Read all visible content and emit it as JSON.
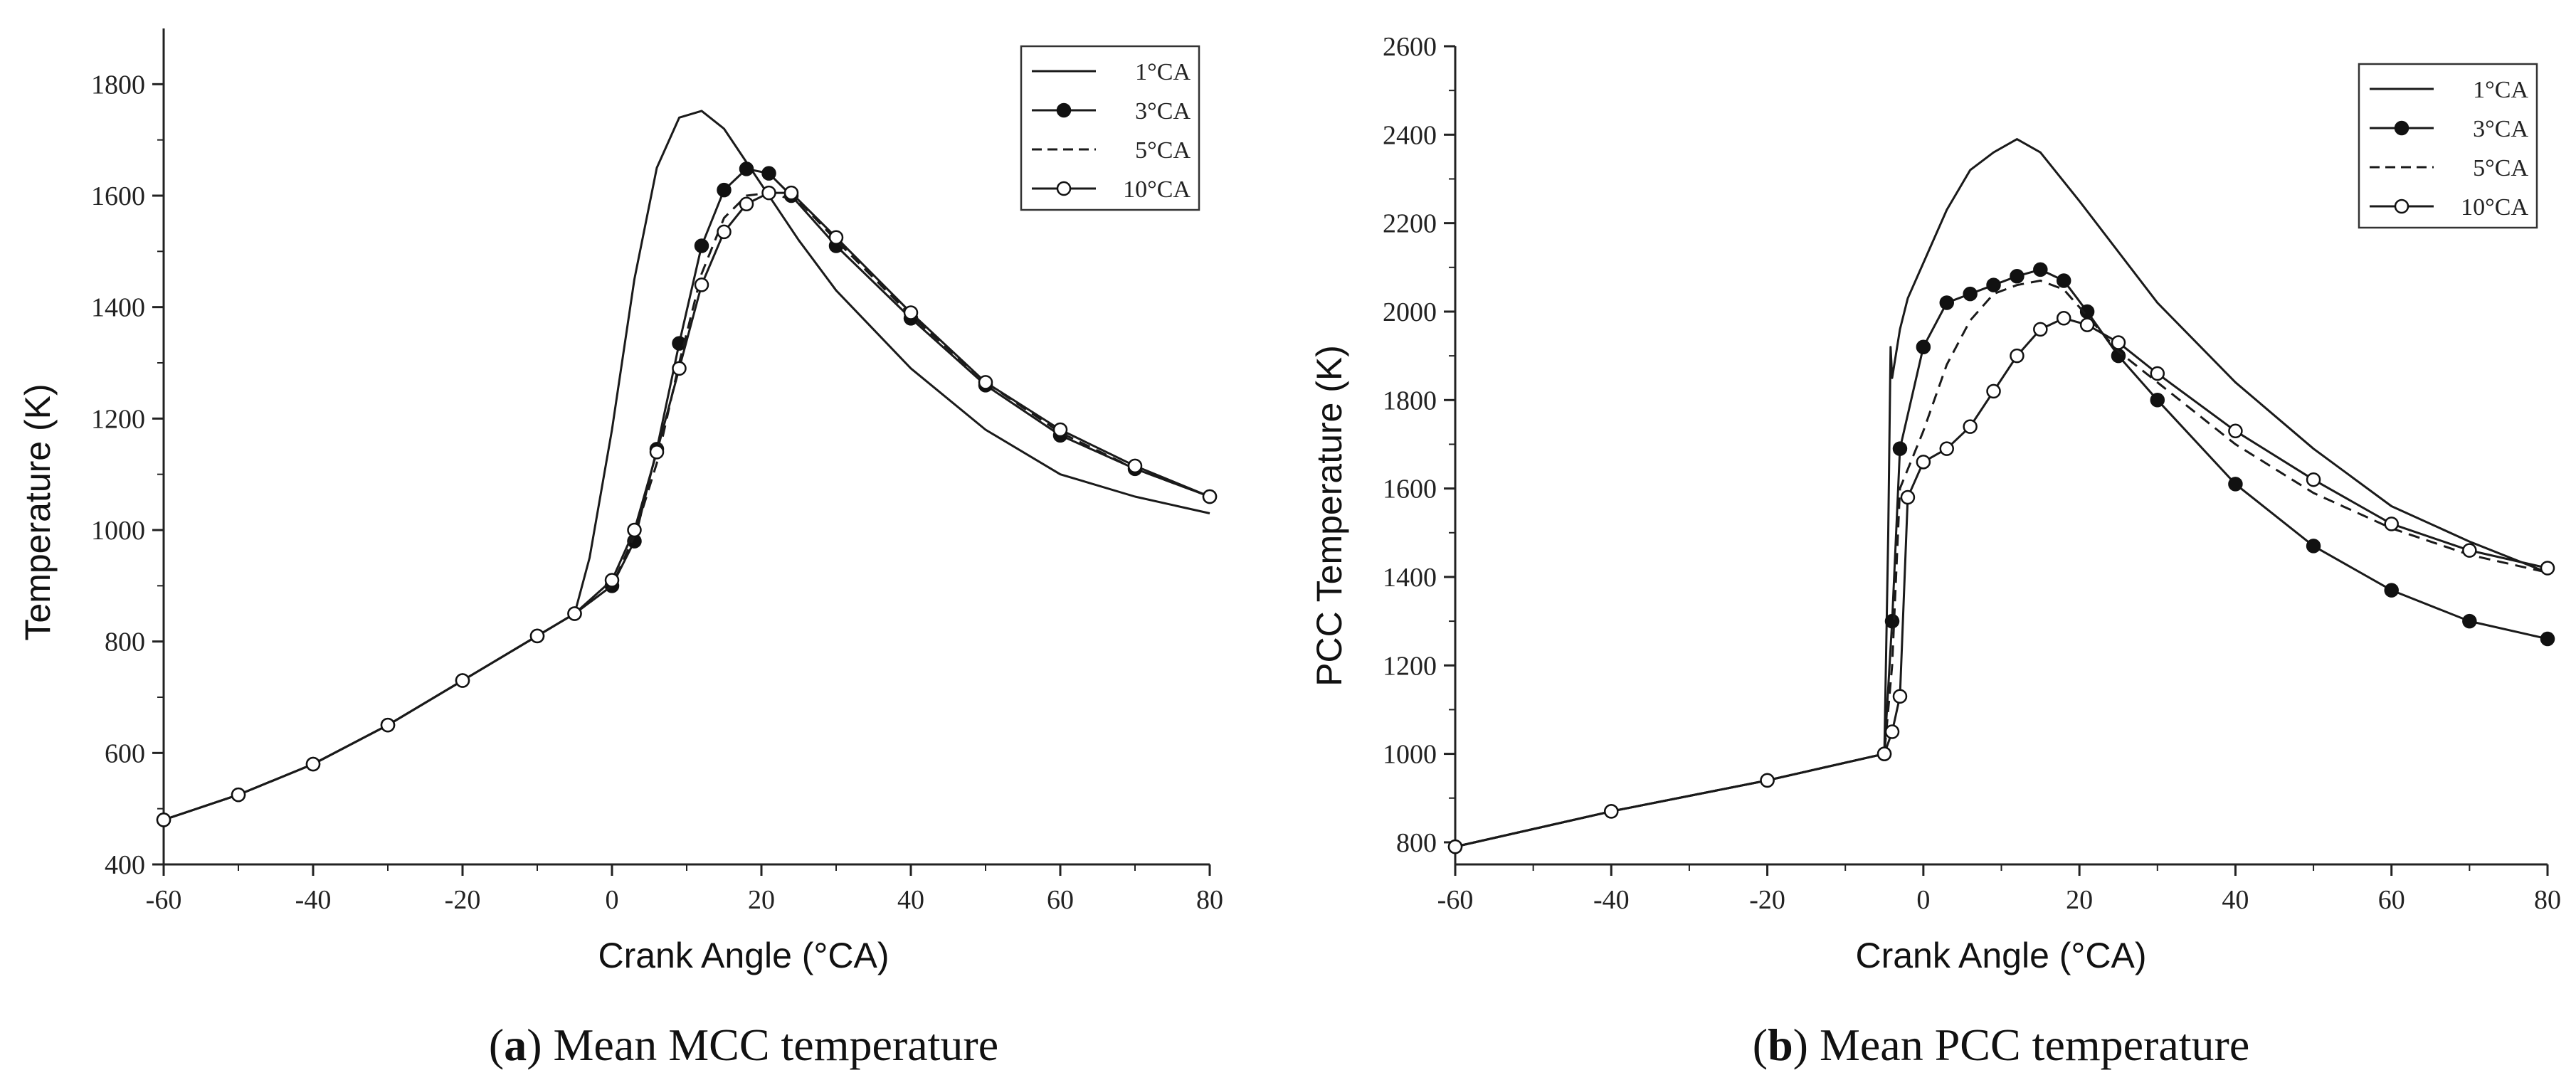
{
  "chart_data": [
    {
      "type": "line",
      "id": "a",
      "title": "Mean MCC temperature",
      "caption_letter": "a",
      "xlabel": "Crank Angle (°CA)",
      "ylabel": "Temperature (K)",
      "xlim": [
        -60,
        80
      ],
      "ylim": [
        400,
        1900
      ],
      "xticks": [
        -60,
        -40,
        -20,
        0,
        20,
        40,
        60,
        80
      ],
      "yticks": [
        400,
        600,
        800,
        1000,
        1200,
        1400,
        1600,
        1800
      ],
      "legend": "top-right",
      "series": [
        {
          "name": "1°CA",
          "style": "solid",
          "x": [
            -60,
            -50,
            -40,
            -30,
            -20,
            -10,
            -5,
            -3,
            0,
            3,
            6,
            9,
            12,
            15,
            20,
            25,
            30,
            40,
            50,
            60,
            70,
            80
          ],
          "y": [
            480,
            525,
            580,
            650,
            730,
            810,
            850,
            950,
            1180,
            1450,
            1650,
            1740,
            1752,
            1720,
            1620,
            1520,
            1430,
            1290,
            1180,
            1100,
            1060,
            1030
          ]
        },
        {
          "name": "3°CA",
          "style": "filled-circle",
          "x": [
            -60,
            -50,
            -40,
            -30,
            -20,
            -10,
            -5,
            0,
            3,
            6,
            9,
            12,
            15,
            18,
            21,
            24,
            30,
            40,
            50,
            60,
            70,
            80
          ],
          "y": [
            480,
            525,
            580,
            650,
            730,
            810,
            850,
            900,
            980,
            1145,
            1335,
            1510,
            1610,
            1648,
            1640,
            1600,
            1510,
            1380,
            1260,
            1170,
            1110,
            1060
          ]
        },
        {
          "name": "5°CA",
          "style": "dashed",
          "x": [
            -60,
            -50,
            -40,
            -30,
            -20,
            -10,
            -5,
            0,
            3,
            6,
            9,
            12,
            15,
            18,
            21,
            25,
            30,
            40,
            50,
            60,
            70,
            80
          ],
          "y": [
            480,
            525,
            580,
            650,
            730,
            810,
            850,
            900,
            990,
            1120,
            1300,
            1460,
            1560,
            1600,
            1605,
            1590,
            1520,
            1385,
            1265,
            1175,
            1110,
            1060
          ]
        },
        {
          "name": "10°CA",
          "style": "open-circle",
          "x": [
            -60,
            -50,
            -40,
            -30,
            -20,
            -10,
            -5,
            0,
            3,
            6,
            9,
            12,
            15,
            18,
            21,
            24,
            30,
            40,
            50,
            60,
            70,
            80
          ],
          "y": [
            480,
            525,
            580,
            650,
            730,
            810,
            850,
            910,
            1000,
            1140,
            1290,
            1440,
            1535,
            1585,
            1605,
            1605,
            1525,
            1390,
            1265,
            1180,
            1115,
            1060
          ]
        }
      ]
    },
    {
      "type": "line",
      "id": "b",
      "title": "Mean PCC temperature",
      "caption_letter": "b",
      "xlabel": "Crank Angle (°CA)",
      "ylabel": "PCC Temperature (K)",
      "xlim": [
        -60,
        80
      ],
      "ylim": [
        750,
        2600
      ],
      "xticks": [
        -60,
        -40,
        -20,
        0,
        20,
        40,
        60,
        80
      ],
      "yticks": [
        800,
        1000,
        1200,
        1400,
        1600,
        1800,
        2000,
        2200,
        2400,
        2600
      ],
      "legend": "top-right",
      "series": [
        {
          "name": "1°CA",
          "style": "solid",
          "x": [
            -60,
            -40,
            -20,
            -5,
            -4.5,
            -4.2,
            -4,
            -3,
            -2,
            0,
            3,
            6,
            9,
            12,
            15,
            20,
            30,
            40,
            50,
            60,
            70,
            80
          ],
          "y": [
            790,
            870,
            940,
            1000,
            1500,
            1920,
            1850,
            1960,
            2030,
            2110,
            2230,
            2320,
            2360,
            2390,
            2360,
            2250,
            2020,
            1840,
            1690,
            1560,
            1480,
            1410
          ]
        },
        {
          "name": "3°CA",
          "style": "filled-circle",
          "x": [
            -60,
            -40,
            -20,
            -5,
            -4,
            -3,
            0,
            3,
            6,
            9,
            12,
            15,
            18,
            21,
            25,
            30,
            40,
            50,
            60,
            70,
            80
          ],
          "y": [
            790,
            870,
            940,
            1000,
            1300,
            1690,
            1920,
            2020,
            2040,
            2060,
            2080,
            2095,
            2070,
            2000,
            1900,
            1800,
            1610,
            1470,
            1370,
            1300,
            1260
          ]
        },
        {
          "name": "5°CA",
          "style": "dashed",
          "x": [
            -60,
            -40,
            -20,
            -5,
            -4,
            -3,
            0,
            3,
            6,
            9,
            12,
            15,
            18,
            21,
            25,
            30,
            40,
            50,
            60,
            70,
            80
          ],
          "y": [
            790,
            870,
            940,
            1000,
            1200,
            1600,
            1730,
            1880,
            1980,
            2040,
            2060,
            2070,
            2050,
            1990,
            1910,
            1840,
            1700,
            1590,
            1510,
            1450,
            1410
          ]
        },
        {
          "name": "10°CA",
          "style": "open-circle",
          "x": [
            -60,
            -40,
            -20,
            -5,
            -4,
            -3,
            -2,
            0,
            3,
            6,
            9,
            12,
            15,
            18,
            21,
            25,
            30,
            40,
            50,
            60,
            70,
            80
          ],
          "y": [
            790,
            870,
            940,
            1000,
            1050,
            1130,
            1580,
            1660,
            1690,
            1740,
            1820,
            1900,
            1960,
            1985,
            1970,
            1930,
            1860,
            1730,
            1620,
            1520,
            1460,
            1420
          ]
        }
      ]
    }
  ]
}
